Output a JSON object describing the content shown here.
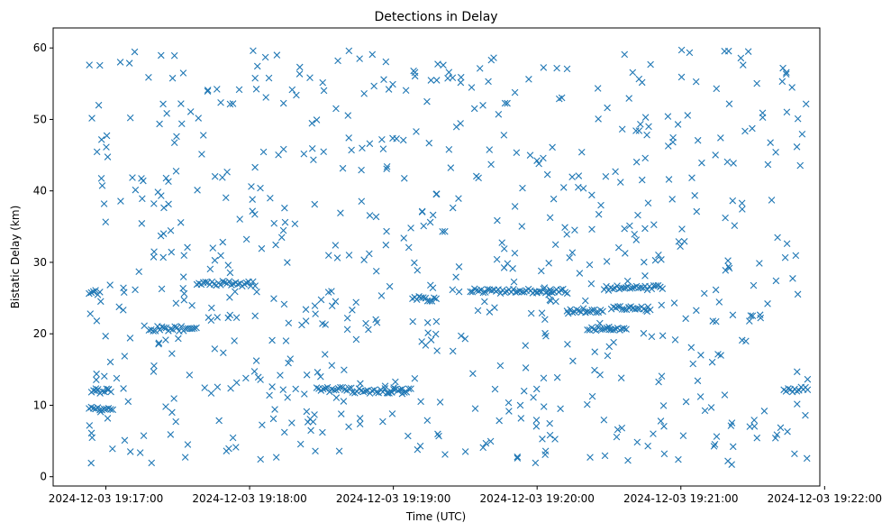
{
  "chart_data": {
    "type": "scatter",
    "title": "Detections in Delay",
    "xlabel": "Time (UTC)",
    "ylabel": "Bistatic Delay (km)",
    "marker": "x",
    "color": "#1f77b4",
    "grid": false,
    "legend": "none",
    "x_range": [
      "2024-12-03 19:16:38",
      "2024-12-03 19:21:58"
    ],
    "ylim": [
      -1.3,
      62.8
    ],
    "x_ticks": [
      "2024-12-03 19:17:00",
      "2024-12-03 19:18:00",
      "2024-12-03 19:19:00",
      "2024-12-03 19:20:00",
      "2024-12-03 19:21:00",
      "2024-12-03 19:22:00"
    ],
    "y_ticks": [
      0,
      10,
      20,
      30,
      40,
      50,
      60
    ],
    "x_start": "2024-12-03 19:16:53",
    "x_end": "2024-12-03 19:21:53",
    "bands": [
      {
        "from": 0,
        "to": 5,
        "y": 25.8
      },
      {
        "from": 0,
        "to": 10,
        "y": 9.5
      },
      {
        "from": 1,
        "to": 10,
        "y": 12.0
      },
      {
        "from": 25,
        "to": 45,
        "y": 20.7
      },
      {
        "from": 45,
        "to": 70,
        "y": 27.0
      },
      {
        "from": 95,
        "to": 110,
        "y": 12.2
      },
      {
        "from": 110,
        "to": 135,
        "y": 12.0
      },
      {
        "from": 135,
        "to": 145,
        "y": 24.9
      },
      {
        "from": 160,
        "to": 200,
        "y": 26.0
      },
      {
        "from": 200,
        "to": 215,
        "y": 23.2
      },
      {
        "from": 208,
        "to": 225,
        "y": 20.6
      },
      {
        "from": 215,
        "to": 240,
        "y": 26.4
      },
      {
        "from": 218,
        "to": 235,
        "y": 23.5
      },
      {
        "from": 290,
        "to": 300,
        "y": 12.2
      }
    ],
    "random_points": 700
  }
}
